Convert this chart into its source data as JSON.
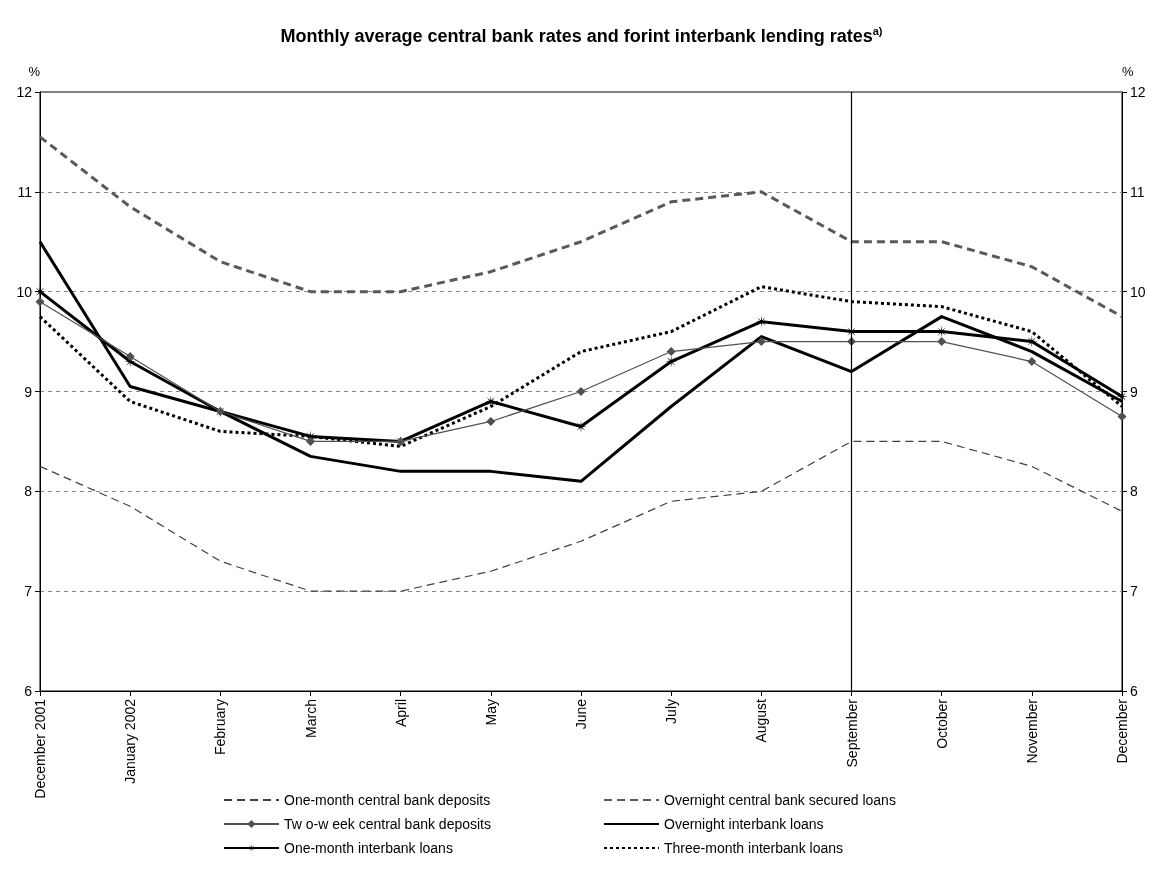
{
  "chart_data": {
    "type": "line",
    "title": "Monthly average central bank rates and forint interbank lending rates$^{a)}$",
    "ylabel": "%",
    "y2label": "%",
    "categories": [
      "December 2001",
      "January 2002",
      "February",
      "March",
      "April",
      "May",
      "June",
      "July",
      "August",
      "September",
      "October",
      "November",
      "December"
    ],
    "series": [
      {
        "name": "One-month central bank deposits",
        "color": "#404040",
        "line_style": "dashed",
        "marker": "none",
        "values": [
          8.25,
          7.85,
          7.3,
          7.0,
          7.0,
          7.2,
          7.5,
          7.9,
          8.0,
          8.5,
          8.5,
          8.25,
          7.8
        ]
      },
      {
        "name": "Overnight central bank secured loans",
        "color": "#595959",
        "line_style": "dashed",
        "marker": "none",
        "values": [
          11.55,
          10.85,
          10.3,
          10.0,
          10.0,
          10.2,
          10.5,
          10.9,
          11.0,
          10.5,
          10.5,
          10.25,
          9.75
        ]
      },
      {
        "name": "Tw o-w eek central bank deposits",
        "color": "#505050",
        "line_style": "solid",
        "marker": "diamond",
        "values": [
          9.9,
          9.35,
          8.8,
          8.5,
          8.5,
          8.7,
          9.0,
          9.4,
          9.5,
          9.5,
          9.5,
          9.3,
          8.75
        ]
      },
      {
        "name": "Overnight interbank loans",
        "color": "#000000",
        "line_style": "solid",
        "marker": "none",
        "values": [
          10.5,
          9.05,
          8.8,
          8.35,
          8.2,
          8.2,
          8.1,
          8.85,
          9.55,
          9.2,
          9.75,
          9.4,
          8.9
        ]
      },
      {
        "name": "One-month interbank loans",
        "color": "#000000",
        "line_style": "solid",
        "marker": "star",
        "values": [
          10.0,
          9.3,
          8.8,
          8.55,
          8.5,
          8.9,
          8.65,
          9.3,
          9.7,
          9.6,
          9.6,
          9.5,
          8.95
        ]
      },
      {
        "name": "Three-month interbank loans",
        "color": "#000000",
        "line_style": "dotted",
        "marker": "none",
        "values": [
          9.75,
          8.9,
          8.6,
          8.55,
          8.45,
          8.85,
          9.4,
          9.6,
          10.05,
          9.9,
          9.85,
          9.6,
          8.85
        ]
      }
    ],
    "ylim": [
      6,
      12
    ],
    "yticks": [
      6,
      7,
      8,
      9,
      10,
      11,
      12
    ],
    "y2lim": [
      6,
      12
    ],
    "y2ticks": [
      6,
      7,
      8,
      9,
      10,
      11,
      12
    ],
    "ref_lines": [
      {
        "axis": "x",
        "value": "September",
        "color": "#000000",
        "line_style": "solid"
      }
    ],
    "grid": "y",
    "legend": "bottom"
  }
}
